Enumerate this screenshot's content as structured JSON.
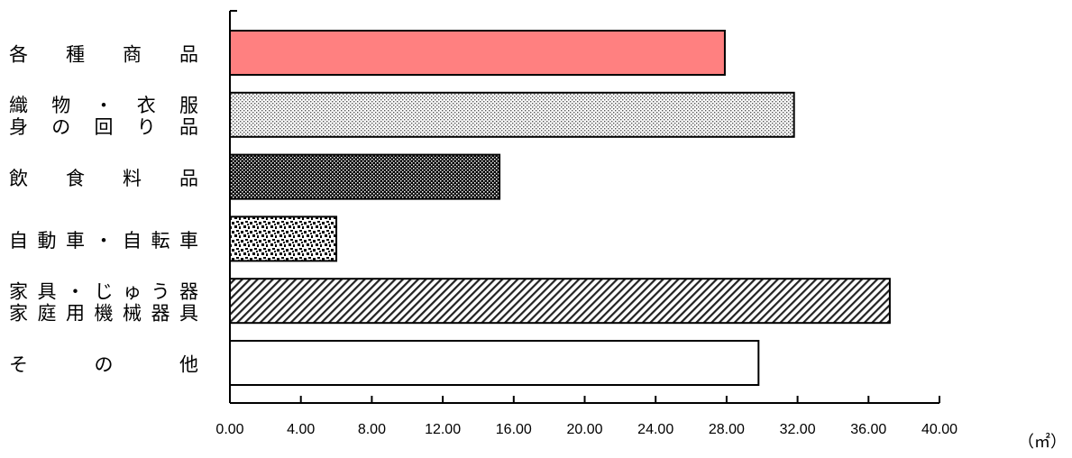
{
  "chart_data": {
    "type": "bar",
    "orientation": "horizontal",
    "categories": [
      [
        "各 種 商 品"
      ],
      [
        "織 物 ・ 衣 服",
        "身 の 回 り 品"
      ],
      [
        "飲 食 料 品"
      ],
      [
        "自動車・自転車"
      ],
      [
        "家具・じゅう器",
        "家庭用機械器具"
      ],
      [
        "そ の 他"
      ]
    ],
    "values": [
      27.9,
      31.8,
      15.2,
      6.0,
      37.2,
      29.8
    ],
    "fills": [
      "#ff8080",
      "dots-light",
      "dots-dark",
      "speckle",
      "diagonal",
      "#ffffff"
    ],
    "xlim": [
      0,
      40
    ],
    "xticks": [
      "0.00",
      "4.00",
      "8.00",
      "12.00",
      "16.00",
      "20.00",
      "24.00",
      "28.00",
      "32.00",
      "36.00",
      "40.00"
    ],
    "unit": "（㎡）",
    "grid": false,
    "legend": "none"
  }
}
